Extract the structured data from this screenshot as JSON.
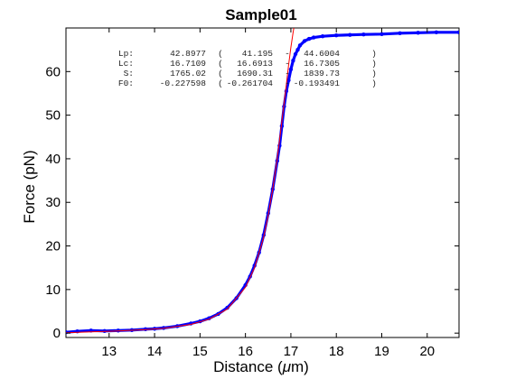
{
  "chart_data": {
    "type": "scatter",
    "title": "Sample01",
    "xlabel": "Distance (",
    "xlabel_unit_symbol": "μ",
    "xlabel_unit_rest": "m)",
    "ylabel": "Force (pN)",
    "xlim": [
      12.05,
      20.7
    ],
    "ylim": [
      -1,
      70
    ],
    "xticks": [
      13,
      14,
      15,
      16,
      17,
      18,
      19,
      20
    ],
    "yticks": [
      0,
      10,
      20,
      30,
      40,
      50,
      60
    ],
    "grid": false,
    "series": [
      {
        "kind": "scatter",
        "color": "#0000ff",
        "x": [
          12.05,
          12.3,
          12.6,
          12.9,
          13.2,
          13.5,
          13.8,
          14.0,
          14.2,
          14.5,
          14.8,
          15.0,
          15.2,
          15.4,
          15.6,
          15.8,
          16.0,
          16.1,
          16.2,
          16.3,
          16.4,
          16.5,
          16.6,
          16.7,
          16.75,
          16.8,
          16.85,
          16.9,
          16.95,
          17.0,
          17.05,
          17.1,
          17.15,
          17.2,
          17.3,
          17.4,
          17.5,
          17.7,
          18.0,
          18.3,
          18.6,
          19.0,
          19.4,
          19.8,
          20.2,
          20.7
        ],
        "y": [
          0.2,
          0.4,
          0.6,
          0.5,
          0.6,
          0.7,
          0.9,
          1.0,
          1.2,
          1.6,
          2.2,
          2.7,
          3.4,
          4.4,
          5.8,
          8.0,
          11.0,
          13.0,
          15.5,
          18.5,
          22.5,
          27.5,
          33.0,
          39.5,
          43.0,
          47.5,
          52.0,
          55.5,
          58.0,
          60.5,
          62.5,
          64.0,
          65.0,
          66.0,
          67.0,
          67.5,
          67.8,
          68.1,
          68.3,
          68.4,
          68.5,
          68.6,
          68.8,
          68.9,
          69.0,
          69.0
        ]
      },
      {
        "kind": "line",
        "color": "#ff0000",
        "x": [
          12.05,
          12.6,
          13.2,
          13.8,
          14.2,
          14.8,
          15.2,
          15.6,
          16.0,
          16.2,
          16.4,
          16.5,
          16.6,
          16.7,
          16.8,
          16.9,
          16.95,
          17.0,
          17.05,
          17.08
        ],
        "y": [
          0.1,
          0.3,
          0.5,
          0.8,
          1.1,
          2.0,
          3.2,
          5.5,
          10.5,
          15.0,
          22.0,
          27.0,
          33.0,
          40.0,
          48.5,
          57.0,
          61.5,
          65.5,
          69.0,
          71.0
        ]
      }
    ],
    "fit_results": [
      {
        "param": "Lp:",
        "value": "42.8977",
        "ci_open": "(",
        "ci_low": "41.195",
        "ci_sep": "-",
        "ci_high": "44.6004",
        "ci_close": ")"
      },
      {
        "param": "Lc:",
        "value": "16.7109",
        "ci_open": "(",
        "ci_low": "16.6913",
        "ci_sep": "-",
        "ci_high": "16.7305",
        "ci_close": ")"
      },
      {
        "param": "S:",
        "value": "1765.02",
        "ci_open": "(",
        "ci_low": "1690.31",
        "ci_sep": "-",
        "ci_high": "1839.73",
        "ci_close": ")"
      },
      {
        "param": "F0:",
        "value": "-0.227598",
        "ci_open": "(",
        "ci_low": "-0.261704",
        "ci_sep": "-",
        "ci_high": "-0.193491",
        "ci_close": ")"
      }
    ]
  }
}
